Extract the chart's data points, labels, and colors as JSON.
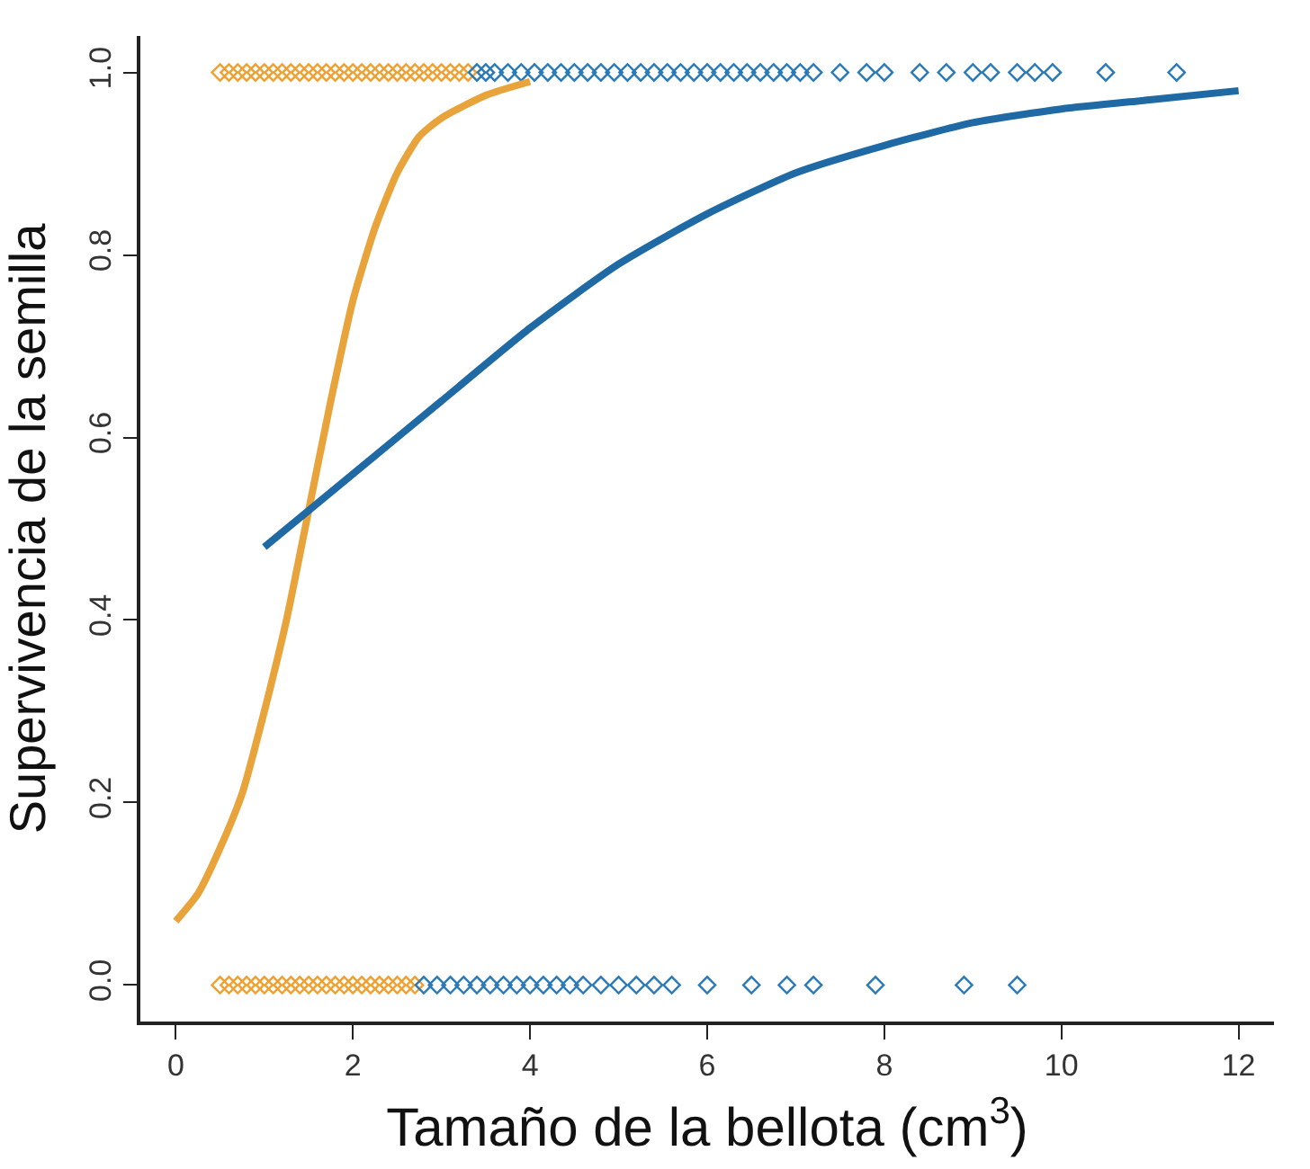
{
  "chart_data": {
    "type": "scatter",
    "xlabel": "Tamaño de la bellota (cm$^{3}$)",
    "ylabel": "Supervivencia de la semilla",
    "xlim": [
      -0.4,
      12.4
    ],
    "ylim": [
      -0.04,
      1.04
    ],
    "xticks": [
      0,
      2,
      4,
      6,
      8,
      10,
      12
    ],
    "yticks": [
      {
        "value": 0,
        "label": "0.0"
      },
      0.2,
      0.4,
      0.6,
      0.8,
      {
        "value": 1,
        "label": "1.0"
      }
    ],
    "marker": "diamond",
    "series": [
      {
        "color": "#f0a030",
        "x": [
          0.5,
          0.6,
          0.7,
          0.8,
          0.9,
          1.0,
          1.1,
          1.2,
          1.3,
          1.4,
          1.5,
          1.6,
          1.7,
          1.8,
          1.9,
          2.0,
          2.1,
          2.2,
          2.3,
          2.4,
          2.5,
          2.6,
          2.7,
          2.8,
          2.9,
          3.0,
          3.1,
          3.2,
          3.3
        ],
        "values": [
          1,
          1,
          1,
          1,
          1,
          1,
          1,
          1,
          1,
          1,
          1,
          1,
          1,
          1,
          1,
          1,
          1,
          1,
          1,
          1,
          1,
          1,
          1,
          1,
          1,
          1,
          1,
          1,
          1
        ]
      },
      {
        "color": "#f0a030",
        "x": [
          0.5,
          0.6,
          0.7,
          0.8,
          0.9,
          1.0,
          1.1,
          1.2,
          1.3,
          1.4,
          1.5,
          1.6,
          1.7,
          1.8,
          1.9,
          2.0,
          2.1,
          2.2,
          2.3,
          2.4,
          2.5,
          2.6,
          2.7
        ],
        "values": [
          0,
          0,
          0,
          0,
          0,
          0,
          0,
          0,
          0,
          0,
          0,
          0,
          0,
          0,
          0,
          0,
          0,
          0,
          0,
          0,
          0,
          0,
          0
        ]
      },
      {
        "color": "#2a7ab8",
        "x": [
          3.4,
          3.5,
          3.6,
          3.75,
          3.9,
          4.05,
          4.2,
          4.35,
          4.5,
          4.65,
          4.8,
          4.95,
          5.1,
          5.25,
          5.4,
          5.55,
          5.7,
          5.85,
          6.0,
          6.15,
          6.3,
          6.45,
          6.6,
          6.75,
          6.9,
          7.05,
          7.2,
          7.5,
          7.8,
          8.0,
          8.4,
          8.7,
          9.0,
          9.2,
          9.5,
          9.7,
          9.9,
          10.5,
          11.3
        ],
        "values": [
          1,
          1,
          1,
          1,
          1,
          1,
          1,
          1,
          1,
          1,
          1,
          1,
          1,
          1,
          1,
          1,
          1,
          1,
          1,
          1,
          1,
          1,
          1,
          1,
          1,
          1,
          1,
          1,
          1,
          1,
          1,
          1,
          1,
          1,
          1,
          1,
          1,
          1,
          1
        ]
      },
      {
        "color": "#2a7ab8",
        "x": [
          2.8,
          2.95,
          3.1,
          3.25,
          3.4,
          3.55,
          3.7,
          3.85,
          4.0,
          4.15,
          4.3,
          4.45,
          4.6,
          4.8,
          5.0,
          5.2,
          5.4,
          5.6,
          6.0,
          6.5,
          6.9,
          7.2,
          7.9,
          8.9,
          9.5
        ],
        "values": [
          0,
          0,
          0,
          0,
          0,
          0,
          0,
          0,
          0,
          0,
          0,
          0,
          0,
          0,
          0,
          0,
          0,
          0,
          0,
          0,
          0,
          0,
          0,
          0,
          0
        ]
      },
      {
        "type": "line",
        "color": "#e8a33a",
        "marker": "none",
        "line_style": "solid",
        "x": [
          0,
          0.25,
          0.5,
          0.75,
          1.0,
          1.25,
          1.5,
          1.75,
          2.0,
          2.25,
          2.5,
          2.75,
          3.0,
          3.5,
          4.0
        ],
        "values": [
          0.07,
          0.1,
          0.15,
          0.21,
          0.3,
          0.4,
          0.52,
          0.64,
          0.75,
          0.83,
          0.89,
          0.93,
          0.95,
          0.975,
          0.99
        ]
      },
      {
        "type": "line",
        "color": "#1f6aa5",
        "marker": "none",
        "line_style": "solid",
        "x": [
          1,
          2,
          3,
          4,
          5,
          6,
          7,
          8,
          9,
          10,
          11,
          12
        ],
        "values": [
          0.48,
          0.56,
          0.64,
          0.72,
          0.79,
          0.845,
          0.89,
          0.92,
          0.945,
          0.96,
          0.97,
          0.98
        ]
      }
    ]
  }
}
